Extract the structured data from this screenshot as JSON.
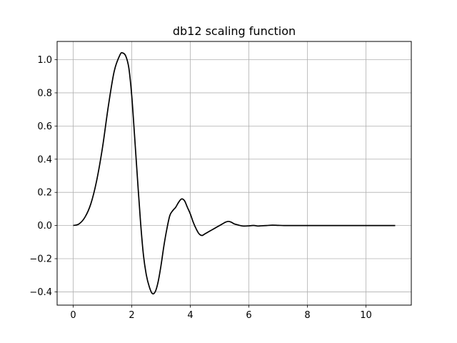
{
  "chart_data": {
    "type": "line",
    "title": "db12 scaling function",
    "xlabel": "",
    "ylabel": "",
    "xlim": [
      -0.55,
      11.55
    ],
    "ylim": [
      -0.48,
      1.11
    ],
    "grid": true,
    "x_ticks": [
      0,
      2,
      4,
      6,
      8,
      10
    ],
    "x_tick_labels": [
      "0",
      "2",
      "4",
      "6",
      "8",
      "10"
    ],
    "y_ticks": [
      -0.4,
      -0.2,
      0.0,
      0.2,
      0.4,
      0.6,
      0.8,
      1.0
    ],
    "y_tick_labels": [
      "−0.4",
      "−0.2",
      "0.0",
      "0.2",
      "0.4",
      "0.6",
      "0.8",
      "1.0"
    ],
    "series": [
      {
        "color": "#000000",
        "x": [
          0,
          0.2,
          0.4,
          0.6,
          0.8,
          1.0,
          1.2,
          1.4,
          1.6,
          1.7,
          1.8,
          1.9,
          2.0,
          2.1,
          2.2,
          2.3,
          2.4,
          2.5,
          2.6,
          2.7,
          2.8,
          2.9,
          3.0,
          3.1,
          3.2,
          3.3,
          3.4,
          3.5,
          3.6,
          3.7,
          3.8,
          3.9,
          4.0,
          4.1,
          4.2,
          4.3,
          4.4,
          4.5,
          4.6,
          4.7,
          4.8,
          4.9,
          5.0,
          5.1,
          5.2,
          5.3,
          5.4,
          5.5,
          5.6,
          5.7,
          5.8,
          5.9,
          6.0,
          6.1,
          6.2,
          6.3,
          6.4,
          6.6,
          6.8,
          7.0,
          7.2,
          7.4,
          8.0,
          9.0,
          10.0,
          11.0
        ],
        "y": [
          0.0,
          0.01,
          0.05,
          0.13,
          0.27,
          0.47,
          0.72,
          0.93,
          1.03,
          1.04,
          1.02,
          0.95,
          0.78,
          0.53,
          0.27,
          0.02,
          -0.18,
          -0.3,
          -0.37,
          -0.41,
          -0.4,
          -0.34,
          -0.24,
          -0.12,
          -0.02,
          0.06,
          0.09,
          0.11,
          0.14,
          0.16,
          0.15,
          0.11,
          0.07,
          0.02,
          -0.02,
          -0.05,
          -0.06,
          -0.05,
          -0.04,
          -0.03,
          -0.02,
          -0.01,
          0.0,
          0.01,
          0.02,
          0.025,
          0.02,
          0.01,
          0.005,
          0.0,
          -0.003,
          -0.003,
          -0.002,
          0.0,
          0.0,
          -0.003,
          -0.002,
          0.0,
          0.002,
          0.001,
          0.0,
          0.0,
          0.0,
          0.0,
          0.0,
          0.0
        ]
      }
    ]
  }
}
